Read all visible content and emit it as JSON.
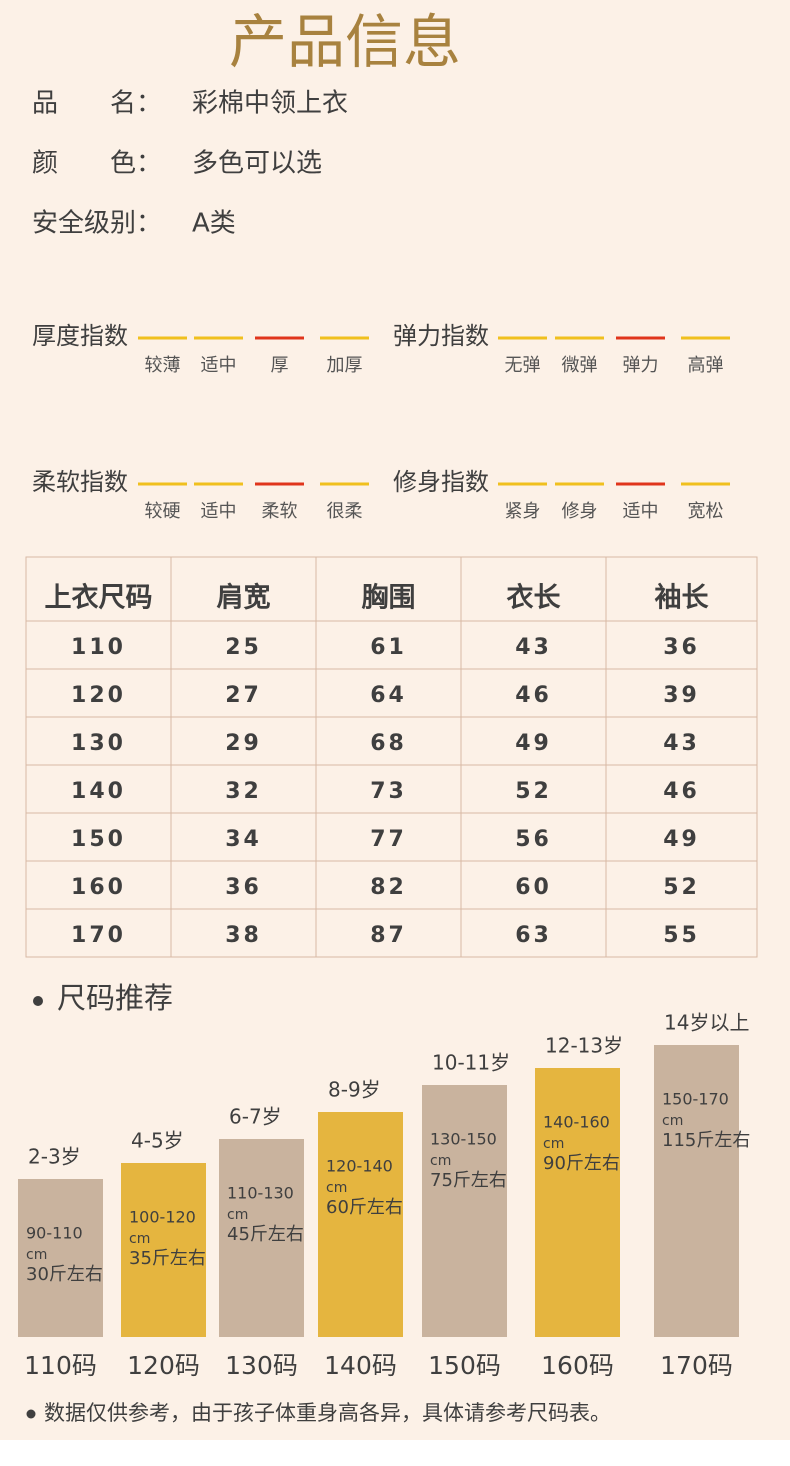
{
  "header": {
    "title": "产品信息"
  },
  "info": [
    {
      "label": "品　　名：",
      "value": "彩棉中领上衣"
    },
    {
      "label": "颜　　色：",
      "value": "多色可以选"
    },
    {
      "label": "安全级别：",
      "value": "A类"
    }
  ],
  "indices": [
    {
      "title": "厚度指数",
      "options": [
        "较薄",
        "适中",
        "厚",
        "加厚"
      ],
      "selected": 2
    },
    {
      "title": "弹力指数",
      "options": [
        "无弹",
        "微弹",
        "弹力",
        "高弹"
      ],
      "selected": 2
    },
    {
      "title": "柔软指数",
      "options": [
        "较硬",
        "适中",
        "柔软",
        "很柔"
      ],
      "selected": 2
    },
    {
      "title": "修身指数",
      "options": [
        "紧身",
        "修身",
        "适中",
        "宽松"
      ],
      "selected": 2
    }
  ],
  "table": {
    "headers": [
      "上衣尺码",
      "肩宽",
      "胸围",
      "衣长",
      "袖长"
    ],
    "rows": [
      [
        "110",
        "25",
        "61",
        "43",
        "36"
      ],
      [
        "120",
        "27",
        "64",
        "46",
        "39"
      ],
      [
        "130",
        "29",
        "68",
        "49",
        "43"
      ],
      [
        "140",
        "32",
        "73",
        "52",
        "46"
      ],
      [
        "150",
        "34",
        "77",
        "56",
        "49"
      ],
      [
        "160",
        "36",
        "82",
        "60",
        "52"
      ],
      [
        "170",
        "38",
        "87",
        "63",
        "55"
      ]
    ]
  },
  "recommend": {
    "title": "尺码推荐",
    "items": [
      {
        "age": "2-3岁",
        "range": "90-110",
        "unit": "cm",
        "weight": "30斤左右",
        "size": "110码",
        "color": "#c9b39e"
      },
      {
        "age": "4-5岁",
        "range": "100-120",
        "unit": "cm",
        "weight": "35斤左右",
        "size": "120码",
        "color": "#e5b53f"
      },
      {
        "age": "6-7岁",
        "range": "110-130",
        "unit": "cm",
        "weight": "45斤左右",
        "size": "130码",
        "color": "#c9b39e"
      },
      {
        "age": "8-9岁",
        "range": "120-140",
        "unit": "cm",
        "weight": "60斤左右",
        "size": "140码",
        "color": "#e5b53f"
      },
      {
        "age": "10-11岁",
        "range": "130-150",
        "unit": "cm",
        "weight": "75斤左右",
        "size": "150码",
        "color": "#c9b39e"
      },
      {
        "age": "12-13岁",
        "range": "140-160",
        "unit": "cm",
        "weight": "90斤左右",
        "size": "160码",
        "color": "#e5b53f"
      },
      {
        "age": "14岁以上",
        "range": "150-170",
        "unit": "cm",
        "weight": "115斤左右",
        "size": "170码",
        "color": "#c9b39e"
      }
    ]
  },
  "footnote": "数据仅供参考，由于孩子体重身高各异，具体请参考尺码表。"
}
